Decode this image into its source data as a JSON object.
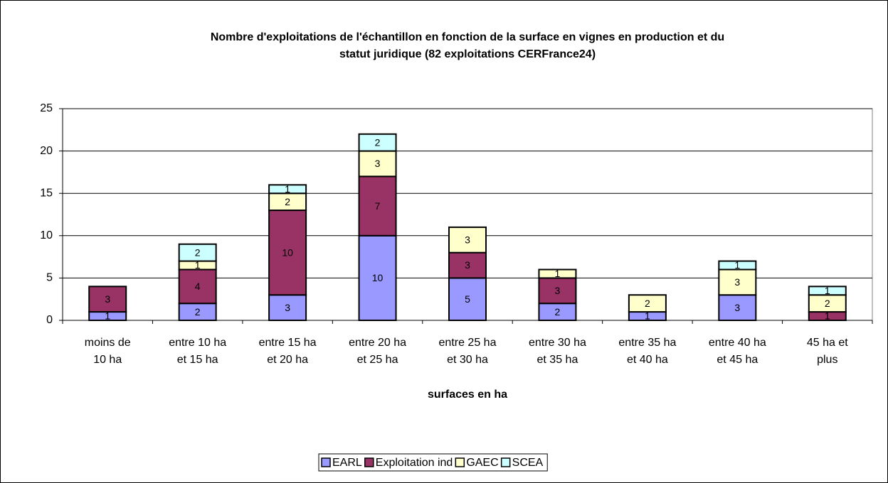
{
  "chart_data": {
    "type": "bar",
    "stacked": true,
    "title": "Nombre d'exploitations de l'échantillon en fonction de la surface en vignes en production et du\nstatut juridique (82 exploitations CERFrance24)",
    "x_label": "surfaces en ha",
    "categories": [
      "moins de\n10 ha",
      "entre 10 ha\net 15 ha",
      "entre 15 ha\net 20 ha",
      "entre 20 ha\net 25 ha",
      "entre 25 ha\net 30 ha",
      "entre 30 ha\net 35 ha",
      "entre 35 ha\net 40 ha",
      "entre 40 ha\net 45 ha",
      "45 ha et\nplus"
    ],
    "series": [
      {
        "name": "EARL",
        "color": "#9999ff",
        "values": [
          1,
          2,
          3,
          10,
          5,
          2,
          1,
          3,
          null
        ]
      },
      {
        "name": "Exploitation ind",
        "color": "#993366",
        "values": [
          3,
          4,
          10,
          7,
          3,
          3,
          null,
          null,
          1
        ]
      },
      {
        "name": "GAEC",
        "color": "#ffffcc",
        "values": [
          null,
          1,
          2,
          3,
          3,
          1,
          2,
          3,
          2
        ]
      },
      {
        "name": "SCEA",
        "color": "#ccffff",
        "values": [
          null,
          2,
          1,
          2,
          null,
          null,
          null,
          1,
          1
        ]
      }
    ],
    "ylim": [
      0,
      25
    ],
    "yticks": [
      0,
      5,
      10,
      15,
      20,
      25
    ],
    "grid": true,
    "legend": "bottom"
  }
}
